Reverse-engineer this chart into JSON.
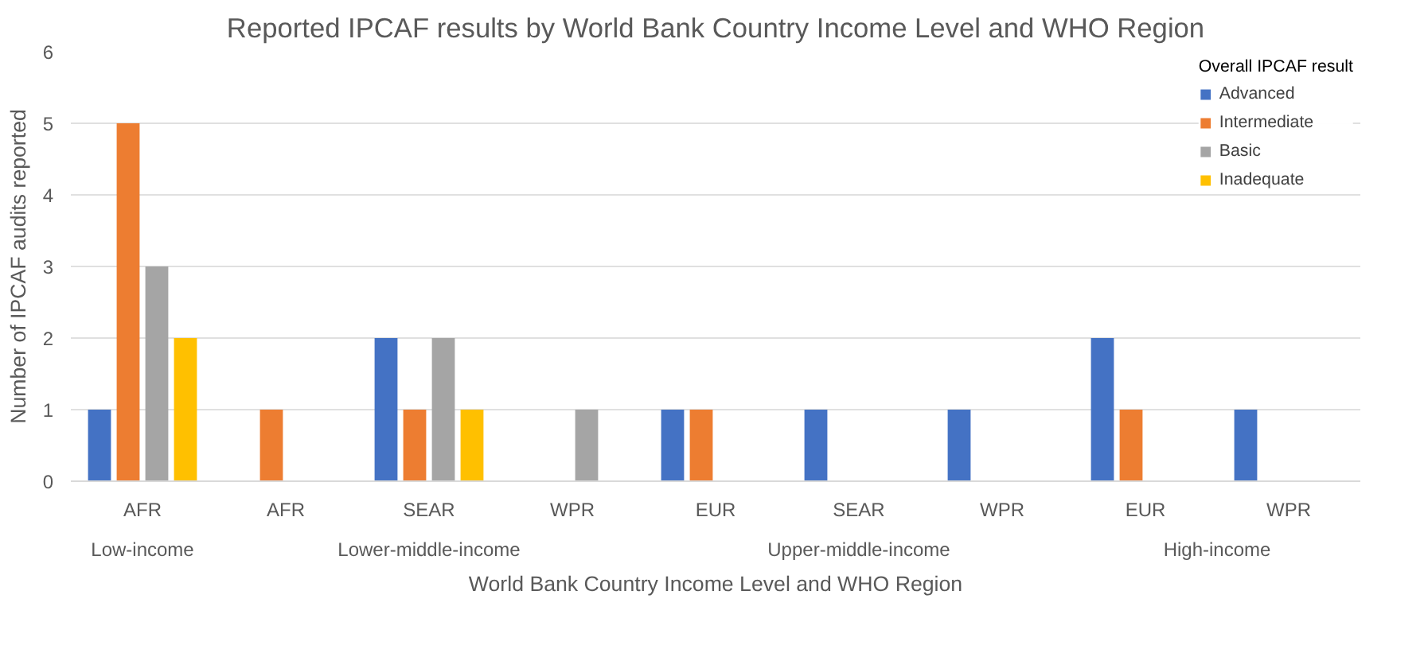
{
  "chart_data": {
    "type": "bar",
    "title": "Reported IPCAF results by World Bank Country Income Level and WHO Region",
    "xlabel": "World Bank Country Income Level and WHO Region",
    "ylabel": "Number of IPCAF audits reported",
    "legend_title": "Overall IPCAF result",
    "categories": [
      "AFR",
      "AFR",
      "SEAR",
      "WPR",
      "EUR",
      "SEAR",
      "WPR",
      "EUR",
      "WPR"
    ],
    "annotations": [
      "Low-income",
      "Lower-middle-income",
      "Upper-middle-income",
      "High-income"
    ],
    "series": [
      {
        "name": "Advanced",
        "color": "#4472c4",
        "values": [
          1,
          0,
          2,
          0,
          1,
          1,
          1,
          2,
          1
        ]
      },
      {
        "name": "Intermediate",
        "color": "#ed7d31",
        "values": [
          5,
          1,
          1,
          0,
          1,
          0,
          0,
          1,
          0
        ]
      },
      {
        "name": "Basic",
        "color": "#a5a5a5",
        "values": [
          3,
          0,
          2,
          1,
          0,
          0,
          0,
          0,
          0
        ]
      },
      {
        "name": "Inadequate",
        "color": "#ffc000",
        "values": [
          2,
          0,
          1,
          0,
          0,
          0,
          0,
          0,
          0
        ]
      }
    ],
    "ylim": [
      0,
      6
    ],
    "yticks": [
      0,
      1,
      2,
      3,
      4,
      5,
      6
    ],
    "grid": "y",
    "legend": "top right"
  }
}
